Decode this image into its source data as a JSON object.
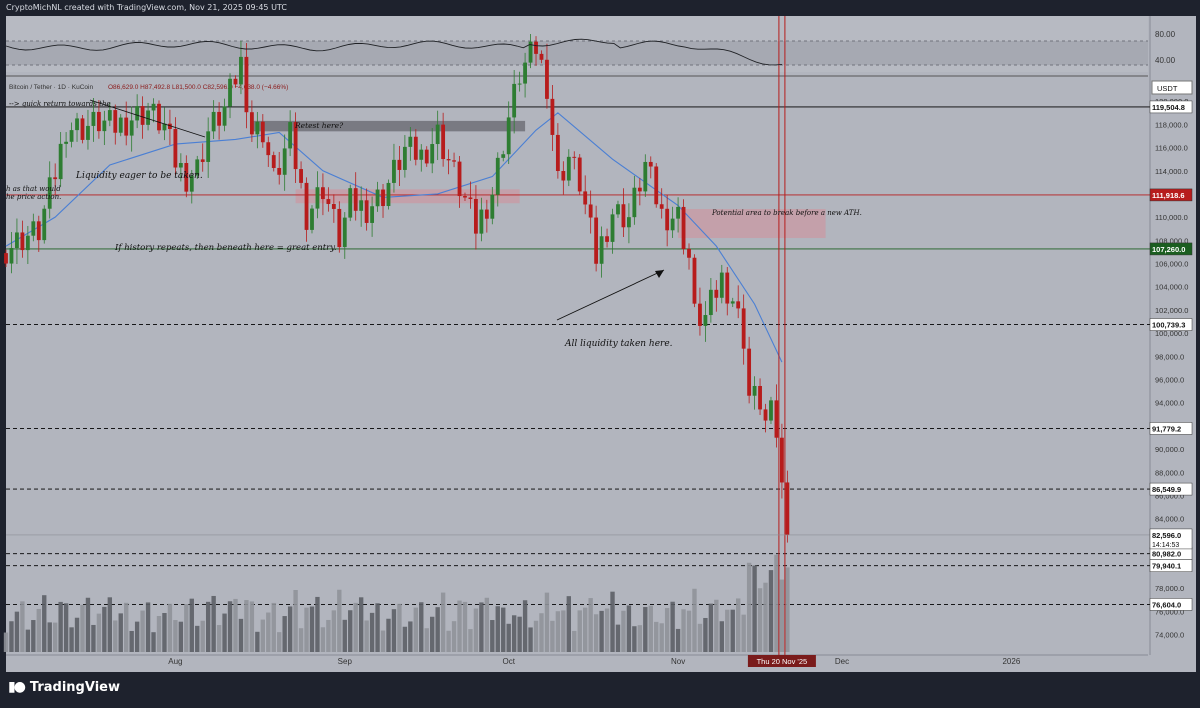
{
  "header": {
    "text": "CryptoMichNL created with TradingView.com, Nov 21, 2025 09:45 UTC"
  },
  "symbol_line": {
    "pair": "Bitcoin / Tether · 1D · KuCoin",
    "ohlc": "O86,629.0  H87,492.8  L81,500.0  C82,596.0  −4,038.0 (−4.66%)"
  },
  "currency": "USDT",
  "brand": "TradingView",
  "colors": {
    "bg": "#b2b5be",
    "up": "#2e7d32",
    "down": "#b71c1c",
    "ma": "#4a7fd4",
    "red_line": "#b71c1c",
    "green_line": "#1b5e20"
  },
  "rsi": {
    "axis": [
      "80.00",
      "40.00"
    ]
  },
  "annotations": {
    "quick_return": "--> quick return towards the",
    "retest": "Retest here?",
    "liquidity": "Liquidity eager to be taken.",
    "cutoff_a": "h as that would",
    "cutoff_b": "he price action.",
    "history": "If history repeats, then beneath here = great entry.",
    "potential": "Potential area to break before a new ATH.",
    "all_liquidity": "All liquidity taken here."
  },
  "chart_data": {
    "type": "candlestick",
    "instrument": "Bitcoin / Tether · 1D · KuCoin",
    "y_axis": {
      "min": 72500,
      "max": 122000,
      "ticks": [
        "74,000.0",
        "76,000.0",
        "78,000.0",
        "80,000.0",
        "82,000.0",
        "84,000.0",
        "86,000.0",
        "88,000.0",
        "90,000.0",
        "92,000.0",
        "94,000.0",
        "96,000.0",
        "98,000.0",
        "100,000.0",
        "102,000.0",
        "104,000.0",
        "106,000.0",
        "108,000.0",
        "110,000.0",
        "112,000.0",
        "114,000.0",
        "116,000.0",
        "118,000.0",
        "120,000.0"
      ]
    },
    "x_axis": {
      "labels": [
        "Aug",
        "Sep",
        "Oct",
        "Nov",
        "Dec",
        "2026"
      ],
      "label_dates": [
        "2025-08-01",
        "2025-09-01",
        "2025-10-01",
        "2025-11-01",
        "2025-12-01",
        "2026-01-01"
      ],
      "cursor_label": "Thu 20 Nov '25",
      "cursor_date": "2025-11-20",
      "range": [
        "2025-07-01",
        "2026-01-26"
      ]
    },
    "price_levels": [
      {
        "value": 119504.8,
        "label": "119,504.8",
        "style": "solid",
        "color": "#000000"
      },
      {
        "value": 111918.6,
        "label": "111,918.6",
        "style": "solid",
        "color": "#b71c1c"
      },
      {
        "value": 107260.0,
        "label": "107,260.0",
        "style": "solid",
        "color": "#1b5e20"
      },
      {
        "value": 100739.3,
        "label": "100,739.3",
        "style": "dashed",
        "color": "#000000"
      },
      {
        "value": 91779.2,
        "label": "91,779.2",
        "style": "dashed",
        "color": "#000000"
      },
      {
        "value": 86549.9,
        "label": "86,549.9",
        "style": "dashed",
        "color": "#000000"
      },
      {
        "value": 80982.0,
        "label": "80,982.0",
        "style": "dashed",
        "color": "#000000"
      },
      {
        "value": 79940.1,
        "label": "79,940.1",
        "style": "dashed",
        "color": "#000000"
      },
      {
        "value": 76604.0,
        "label": "76,604.0",
        "style": "dashed",
        "color": "#000000"
      }
    ],
    "last_price": {
      "value": 82596.0,
      "label": "82,596.0",
      "countdown": "14:14:53"
    },
    "zones": [
      {
        "from": "2025-08-15",
        "to": "2025-10-04",
        "low": 117400,
        "high": 118300
      },
      {
        "from": "2025-08-23",
        "to": "2025-10-03",
        "low": 111200,
        "high": 112400
      },
      {
        "from": "2025-11-01",
        "to": "2025-11-28",
        "low": 108200,
        "high": 110700
      }
    ],
    "closes": [
      [
        "2025-07-01",
        107300
      ],
      [
        "2025-07-04",
        108200
      ],
      [
        "2025-07-07",
        108800
      ],
      [
        "2025-07-10",
        113800
      ],
      [
        "2025-07-12",
        117800
      ],
      [
        "2025-07-15",
        117700
      ],
      [
        "2025-07-18",
        118200
      ],
      [
        "2025-07-21",
        117800
      ],
      [
        "2025-07-24",
        118600
      ],
      [
        "2025-07-27",
        119200
      ],
      [
        "2025-07-30",
        117800
      ],
      [
        "2025-08-01",
        114800
      ],
      [
        "2025-08-03",
        113500
      ],
      [
        "2025-08-05",
        114200
      ],
      [
        "2025-08-07",
        117400
      ],
      [
        "2025-08-10",
        119300
      ],
      [
        "2025-08-13",
        123300
      ],
      [
        "2025-08-15",
        117400
      ],
      [
        "2025-08-17",
        117500
      ],
      [
        "2025-08-19",
        113200
      ],
      [
        "2025-08-22",
        116900
      ],
      [
        "2025-08-25",
        110200
      ],
      [
        "2025-08-28",
        112600
      ],
      [
        "2025-08-31",
        108200
      ],
      [
        "2025-09-02",
        111200
      ],
      [
        "2025-09-05",
        110800
      ],
      [
        "2025-09-08",
        112000
      ],
      [
        "2025-09-12",
        115800
      ],
      [
        "2025-09-15",
        115300
      ],
      [
        "2025-09-18",
        117200
      ],
      [
        "2025-09-22",
        112600
      ],
      [
        "2025-09-25",
        109100
      ],
      [
        "2025-09-28",
        112200
      ],
      [
        "2025-10-01",
        118600
      ],
      [
        "2025-10-03",
        122300
      ],
      [
        "2025-10-06",
        124600
      ],
      [
        "2025-10-08",
        121500
      ],
      [
        "2025-10-10",
        113200
      ],
      [
        "2025-10-12",
        115200
      ],
      [
        "2025-10-14",
        113000
      ],
      [
        "2025-10-17",
        106500
      ],
      [
        "2025-10-20",
        110500
      ],
      [
        "2025-10-23",
        110000
      ],
      [
        "2025-10-26",
        114500
      ],
      [
        "2025-10-29",
        110200
      ],
      [
        "2025-11-01",
        110100
      ],
      [
        "2025-11-03",
        106500
      ],
      [
        "2025-11-04",
        101500
      ],
      [
        "2025-11-06",
        101300
      ],
      [
        "2025-11-09",
        104700
      ],
      [
        "2025-11-11",
        103000
      ],
      [
        "2025-11-13",
        99700
      ],
      [
        "2025-11-14",
        94600
      ],
      [
        "2025-11-16",
        94200
      ],
      [
        "2025-11-17",
        92200
      ],
      [
        "2025-11-18",
        92900
      ],
      [
        "2025-11-19",
        91500
      ],
      [
        "2025-11-20",
        86600
      ],
      [
        "2025-11-21",
        82596
      ]
    ],
    "moving_average": [
      [
        "2025-07-01",
        107500
      ],
      [
        "2025-07-10",
        110000
      ],
      [
        "2025-07-20",
        114500
      ],
      [
        "2025-08-01",
        116300
      ],
      [
        "2025-08-12",
        116700
      ],
      [
        "2025-08-20",
        117300
      ],
      [
        "2025-08-28",
        114000
      ],
      [
        "2025-09-08",
        111700
      ],
      [
        "2025-09-18",
        112000
      ],
      [
        "2025-09-28",
        113500
      ],
      [
        "2025-10-06",
        117500
      ],
      [
        "2025-10-10",
        119000
      ],
      [
        "2025-10-20",
        115000
      ],
      [
        "2025-11-01",
        111000
      ],
      [
        "2025-11-08",
        107500
      ],
      [
        "2025-11-15",
        102500
      ],
      [
        "2025-11-20",
        97500
      ]
    ]
  }
}
